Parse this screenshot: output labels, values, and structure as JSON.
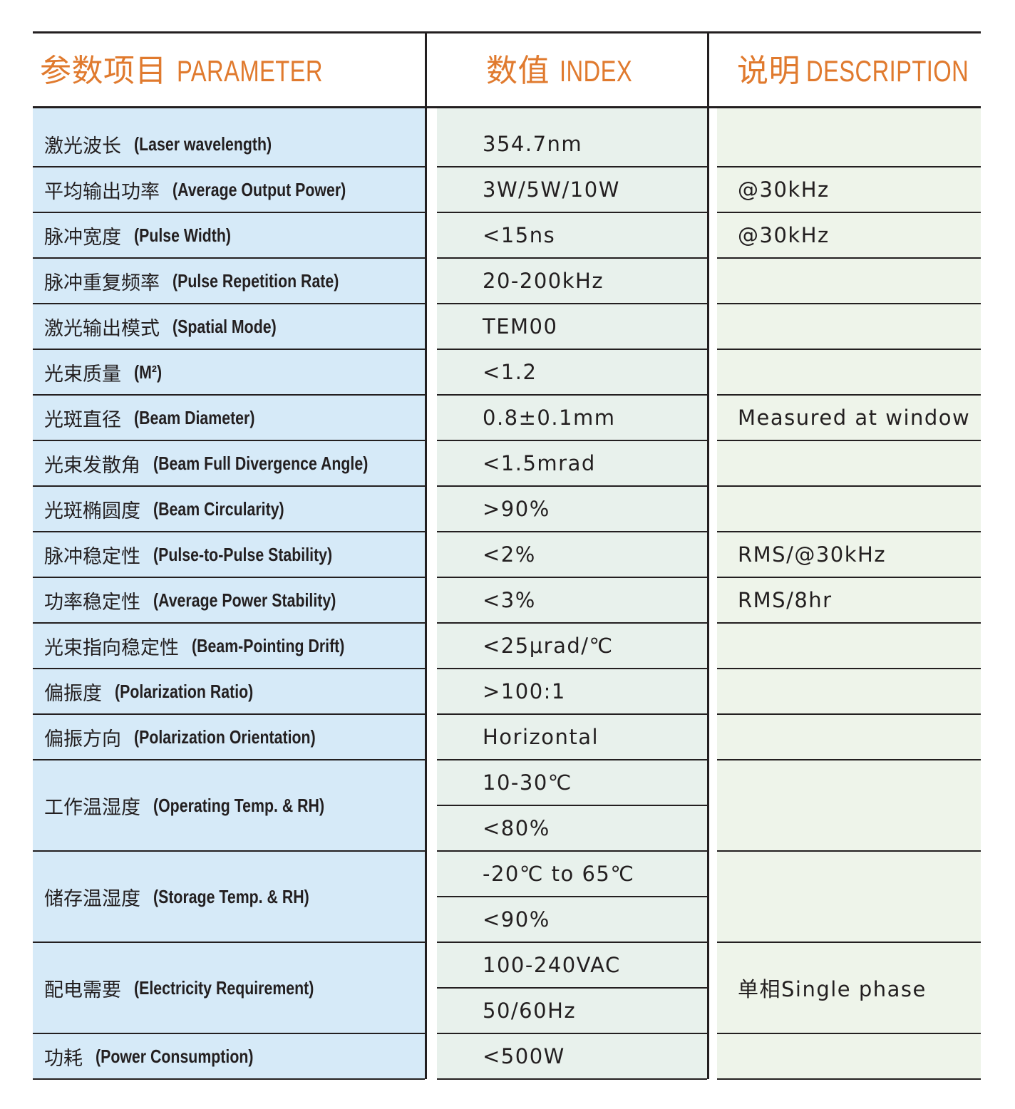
{
  "header": {
    "param_cn": "参数项目",
    "param_en": "PARAMETER",
    "index_cn": "数值",
    "index_en": "INDEX",
    "desc_cn": "说明",
    "desc_en": "DESCRIPTION"
  },
  "colors": {
    "header_text": "#e07a2e",
    "param_bg": "#d6eaf8",
    "index_bg": "#e8f1ec",
    "desc_bg": "#eef4ea",
    "lines": "#231f20"
  },
  "rows": [
    {
      "cn": "激光波长",
      "en": "(Laser wavelength)",
      "values": [
        "354.7nm"
      ],
      "desc": ""
    },
    {
      "cn": "平均输出功率",
      "en": "(Average Output Power)",
      "values": [
        "3W/5W/10W"
      ],
      "desc": "@30kHz"
    },
    {
      "cn": "脉冲宽度",
      "en": "(Pulse Width)",
      "values": [
        "<15ns"
      ],
      "desc": "@30kHz"
    },
    {
      "cn": "脉冲重复频率",
      "en": "(Pulse Repetition Rate)",
      "values": [
        "20-200kHz"
      ],
      "desc": ""
    },
    {
      "cn": "激光输出模式",
      "en": "(Spatial Mode)",
      "values": [
        "TEM00"
      ],
      "desc": ""
    },
    {
      "cn": "光束质量",
      "en": "(M²)",
      "values": [
        "<1.2"
      ],
      "desc": ""
    },
    {
      "cn": "光斑直径",
      "en": "(Beam Diameter)",
      "values": [
        "0.8±0.1mm"
      ],
      "desc": "Measured at window"
    },
    {
      "cn": "光束发散角",
      "en": "(Beam Full Divergence Angle)",
      "values": [
        "<1.5mrad"
      ],
      "desc": ""
    },
    {
      "cn": "光斑椭圆度",
      "en": "(Beam Circularity)",
      "values": [
        ">90%"
      ],
      "desc": ""
    },
    {
      "cn": "脉冲稳定性",
      "en": "(Pulse-to-Pulse Stability)",
      "values": [
        "<2%"
      ],
      "desc": "RMS/@30kHz"
    },
    {
      "cn": "功率稳定性",
      "en": "(Average Power Stability)",
      "values": [
        "<3%"
      ],
      "desc": "RMS/8hr"
    },
    {
      "cn": "光束指向稳定性",
      "en": "(Beam-Pointing Drift)",
      "values": [
        "<25μrad/℃"
      ],
      "desc": ""
    },
    {
      "cn": "偏振度",
      "en": "(Polarization Ratio)",
      "values": [
        ">100:1"
      ],
      "desc": ""
    },
    {
      "cn": "偏振方向",
      "en": "(Polarization Orientation)",
      "values": [
        "Horizontal"
      ],
      "desc": ""
    },
    {
      "cn": "工作温湿度",
      "en": "(Operating Temp. & RH)",
      "values": [
        "10-30℃",
        "<80%"
      ],
      "desc": ""
    },
    {
      "cn": "储存温湿度",
      "en": "(Storage Temp. & RH)",
      "values": [
        "-20℃ to 65℃",
        "<90%"
      ],
      "desc": ""
    },
    {
      "cn": "配电需要",
      "en": "(Electricity Requirement)",
      "values": [
        "100-240VAC",
        "50/60Hz"
      ],
      "desc": "单相Single phase"
    },
    {
      "cn": "功耗",
      "en": "(Power Consumption)",
      "values": [
        "<500W"
      ],
      "desc": ""
    }
  ]
}
